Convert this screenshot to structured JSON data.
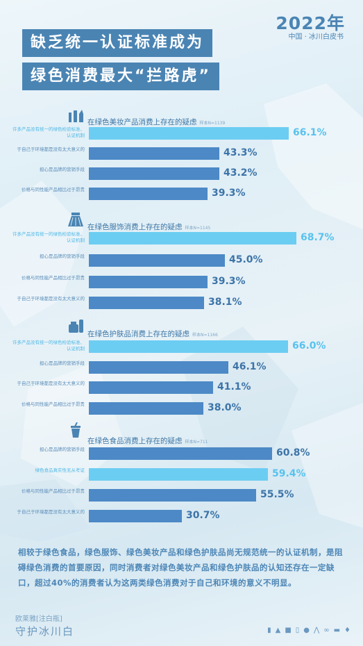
{
  "header": {
    "year": "2022年",
    "subtitle": "中国 · 冰川白皮书",
    "title_line1": "缺乏统一认证标准成为",
    "title_line2": "绿色消费最大“拦路虎”"
  },
  "chart_data": [
    {
      "type": "bar",
      "title": "在绿色美妆产品消费上存在的疑虑",
      "note": "样本N=1139",
      "categories": [
        "许多产品没有统一的绿色检验标准、认证机制",
        "于自己于环境都是没有太大意义的",
        "担心是品牌的营销手段",
        "价格与同性能产品相比过于昂贵"
      ],
      "values": [
        66.1,
        43.3,
        43.2,
        39.3
      ],
      "labels": [
        "66.1%",
        "43.3%",
        "43.2%",
        "39.3%"
      ],
      "highlight": [
        true,
        false,
        false,
        false
      ]
    },
    {
      "type": "bar",
      "title": "在绿色服饰消费上存在的疑虑",
      "note": "样本N=1145",
      "categories": [
        "许多产品没有统一的绿色检验标准、认证机制",
        "担心是品牌的营销手段",
        "价格与同性能产品相比过于昂贵",
        "于自己于环境都是没有太大意义的"
      ],
      "values": [
        68.7,
        45.0,
        39.3,
        38.1
      ],
      "labels": [
        "68.7%",
        "45.0%",
        "39.3%",
        "38.1%"
      ],
      "highlight": [
        true,
        false,
        false,
        false
      ]
    },
    {
      "type": "bar",
      "title": "在绿色护肤品消费上存在的疑虑",
      "note": "样本N=1166",
      "categories": [
        "许多产品没有统一的绿色检验标准、认证机制",
        "担心是品牌的营销手段",
        "于自己于环境都是没有太大意义的",
        "价格与同性能产品相比过于昂贵"
      ],
      "values": [
        66.0,
        46.1,
        41.1,
        38.0
      ],
      "labels": [
        "66.0%",
        "46.1%",
        "41.1%",
        "38.0%"
      ],
      "highlight": [
        true,
        false,
        false,
        false
      ]
    },
    {
      "type": "bar",
      "title": "在绿色食品消费上存在的疑虑",
      "note": "样本N=711",
      "categories": [
        "担心是品牌的营销手段",
        "绿色食品真实性无从考证",
        "价格与同性能产品相比过于昂贵",
        "于自己于环境都是没有太大意义的"
      ],
      "values": [
        60.8,
        59.4,
        55.5,
        30.7
      ],
      "labels": [
        "60.8%",
        "59.4%",
        "55.5%",
        "30.7%"
      ],
      "highlight": [
        false,
        true,
        false,
        false
      ]
    }
  ],
  "paragraph": "相较于绿色食品，绿色服饰、绿色美妆产品和绿色护肤品尚无规范统一的认证机制，是阻碍绿色消费的首要原因，同时消费者对绿色美妆产品和绿色护肤品的认知还存在一定缺口，超过40%的消费者认为这两类绿色消费对于自己和环境的意义不明显。",
  "footer": {
    "brand_line1": "欧莱雅[注白瓶]",
    "brand_line2": "守护冰川白"
  },
  "colors": {
    "bar": "#4c89c6",
    "bar_highlight": "#6ccdf2",
    "title_bg": "#4a84b3"
  },
  "footer_icons": [
    "cosmetics-icon",
    "skirt-icon",
    "cup-icon",
    "bottle-icon",
    "globe-icon",
    "hanger-icon",
    "bicycle-icon",
    "car-icon",
    "drop-icon"
  ]
}
